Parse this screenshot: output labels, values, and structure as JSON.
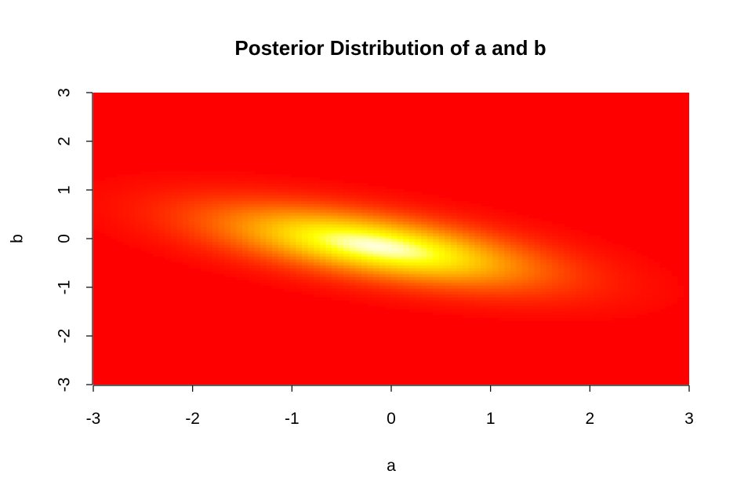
{
  "chart_data": {
    "type": "heatmap",
    "title": "Posterior Distribution of a and b",
    "xlabel": "a",
    "ylabel": "b",
    "xlim": [
      -3,
      3
    ],
    "ylim": [
      -3,
      3
    ],
    "x_ticks": [
      -3,
      -2,
      -1,
      0,
      1,
      2,
      3
    ],
    "y_ticks": [
      -3,
      -2,
      -1,
      0,
      1,
      2,
      3
    ],
    "colormap": "heat.colors",
    "colors": {
      "low": "#ff0000",
      "mid": "#ffff00",
      "high": "#ffffff"
    },
    "peak": {
      "a": -0.15,
      "b": -0.15
    },
    "correlation": -0.6,
    "grid": false,
    "legend": "none"
  }
}
